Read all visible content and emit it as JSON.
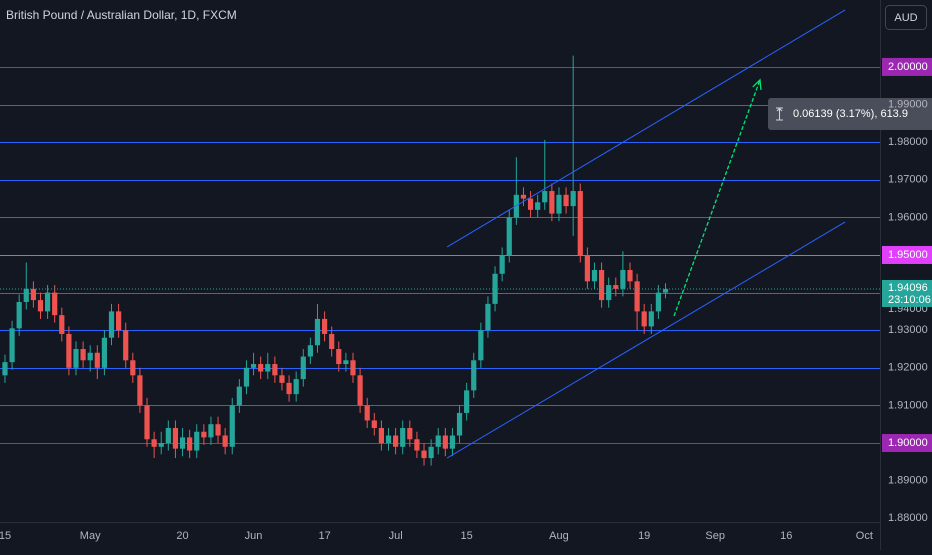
{
  "chart_data": {
    "type": "candlestick",
    "title": "British Pound / Australian Dollar, 1D, FXCM",
    "currency": "AUD",
    "up_color": "#26a69a",
    "down_color": "#ef5350",
    "xlim": [
      -0.7,
      123.2
    ],
    "ylim": [
      1.879,
      2.0178
    ],
    "xticks": [
      {
        "value": 0,
        "label": "15"
      },
      {
        "value": 12,
        "label": "May"
      },
      {
        "value": 25,
        "label": "20"
      },
      {
        "value": 35,
        "label": "Jun"
      },
      {
        "value": 45,
        "label": "17"
      },
      {
        "value": 55,
        "label": "Jul"
      },
      {
        "value": 65,
        "label": "15"
      },
      {
        "value": 78,
        "label": "Aug"
      },
      {
        "value": 90,
        "label": "19"
      },
      {
        "value": 100,
        "label": "Sep"
      },
      {
        "value": 110,
        "label": "16"
      },
      {
        "value": 121,
        "label": "Oct"
      }
    ],
    "yticks": [
      {
        "value": 2.0,
        "label": "2.00000"
      },
      {
        "value": 1.99,
        "label": "1.99000"
      },
      {
        "value": 1.98,
        "label": "1.98000"
      },
      {
        "value": 1.97,
        "label": "1.97000"
      },
      {
        "value": 1.96,
        "label": "1.96000"
      },
      {
        "value": 1.95,
        "label": "1.95000"
      },
      {
        "value": 1.94,
        "label": "1.94000"
      },
      {
        "value": 1.93,
        "label": "1.93000"
      },
      {
        "value": 1.92,
        "label": "1.92000"
      },
      {
        "value": 1.91,
        "label": "1.91000"
      },
      {
        "value": 1.9,
        "label": "1.90000"
      },
      {
        "value": 1.89,
        "label": "1.89000"
      },
      {
        "value": 1.88,
        "label": "1.88000"
      }
    ],
    "levels": [
      {
        "value": 2.0,
        "color": "#9c27b0",
        "tag": true
      },
      {
        "value": 1.99,
        "color": "#2962ff",
        "tag": false
      },
      {
        "value": 1.98,
        "color": "#2962ff",
        "tag": false
      },
      {
        "value": 1.97,
        "color": "#2962ff",
        "tag": false
      },
      {
        "value": 1.96,
        "color": "#2962ff",
        "tag": false
      },
      {
        "value": 1.95,
        "color": "#e040fb",
        "tag": true
      },
      {
        "value": 1.94,
        "color": "#2962ff",
        "tag": false
      },
      {
        "value": 1.93,
        "color": "#2962ff",
        "tag": false
      },
      {
        "value": 1.92,
        "color": "#2962ff",
        "tag": false
      },
      {
        "value": 1.91,
        "color": "#2962ff",
        "tag": false
      },
      {
        "value": 1.9,
        "color": "#9c27b0",
        "tag": true
      }
    ],
    "trend_lines": [
      {
        "x": [
          62.25,
          118.3
        ],
        "y": [
          1.95213,
          2.01516
        ],
        "color": "#2962ff"
      },
      {
        "x": [
          62.25,
          118.3
        ],
        "y": [
          1.89601,
          1.95878
        ],
        "color": "#2962ff"
      }
    ],
    "projection_arrow": {
      "x": [
        94.2,
        106.3
      ],
      "y": [
        1.93378,
        1.99654
      ],
      "color": "#00e676"
    },
    "measure_label": "0.06139 (3.17%), 613.9",
    "countdown": "23:10:06",
    "ohlc": [
      [
        1.918,
        1.9235,
        1.916,
        1.9215
      ],
      [
        1.9215,
        1.9325,
        1.9195,
        1.9305
      ],
      [
        1.9305,
        1.9395,
        1.9285,
        1.9375
      ],
      [
        1.9375,
        1.948,
        1.9355,
        1.941
      ],
      [
        1.941,
        1.943,
        1.936,
        1.938
      ],
      [
        1.938,
        1.94,
        1.933,
        1.935
      ],
      [
        1.935,
        1.942,
        1.933,
        1.94
      ],
      [
        1.94,
        1.942,
        1.932,
        1.934
      ],
      [
        1.934,
        1.936,
        1.927,
        1.929
      ],
      [
        1.929,
        1.931,
        1.918,
        1.92
      ],
      [
        1.92,
        1.927,
        1.918,
        1.925
      ],
      [
        1.925,
        1.927,
        1.92,
        1.922
      ],
      [
        1.922,
        1.926,
        1.919,
        1.924
      ],
      [
        1.924,
        1.926,
        1.917,
        1.92
      ],
      [
        1.92,
        1.93,
        1.918,
        1.928
      ],
      [
        1.928,
        1.937,
        1.926,
        1.935
      ],
      [
        1.935,
        1.937,
        1.928,
        1.93
      ],
      [
        1.93,
        1.932,
        1.92,
        1.922
      ],
      [
        1.922,
        1.924,
        1.916,
        1.918
      ],
      [
        1.918,
        1.92,
        1.908,
        1.91
      ],
      [
        1.91,
        1.912,
        1.899,
        1.901
      ],
      [
        1.901,
        1.903,
        1.896,
        1.899
      ],
      [
        1.899,
        1.903,
        1.897,
        1.9
      ],
      [
        1.9,
        1.906,
        1.898,
        1.904
      ],
      [
        1.904,
        1.906,
        1.896,
        1.8985
      ],
      [
        1.8985,
        1.904,
        1.8965,
        1.9015
      ],
      [
        1.9015,
        1.9035,
        1.896,
        1.898
      ],
      [
        1.898,
        1.905,
        1.896,
        1.903
      ],
      [
        1.903,
        1.905,
        1.8995,
        1.9015
      ],
      [
        1.9015,
        1.907,
        1.8995,
        1.905
      ],
      [
        1.905,
        1.907,
        1.9,
        1.902
      ],
      [
        1.902,
        1.904,
        1.897,
        1.899
      ],
      [
        1.899,
        1.912,
        1.897,
        1.91
      ],
      [
        1.91,
        1.917,
        1.908,
        1.915
      ],
      [
        1.915,
        1.922,
        1.913,
        1.92
      ],
      [
        1.92,
        1.924,
        1.918,
        1.921
      ],
      [
        1.921,
        1.923,
        1.917,
        1.919
      ],
      [
        1.919,
        1.924,
        1.917,
        1.921
      ],
      [
        1.921,
        1.923,
        1.916,
        1.918
      ],
      [
        1.918,
        1.92,
        1.914,
        1.916
      ],
      [
        1.916,
        1.918,
        1.911,
        1.913
      ],
      [
        1.913,
        1.919,
        1.911,
        1.917
      ],
      [
        1.917,
        1.925,
        1.915,
        1.923
      ],
      [
        1.923,
        1.928,
        1.921,
        1.926
      ],
      [
        1.926,
        1.937,
        1.924,
        1.933
      ],
      [
        1.933,
        1.935,
        1.927,
        1.929
      ],
      [
        1.929,
        1.931,
        1.923,
        1.925
      ],
      [
        1.925,
        1.927,
        1.919,
        1.921
      ],
      [
        1.921,
        1.924,
        1.919,
        1.922
      ],
      [
        1.922,
        1.924,
        1.916,
        1.918
      ],
      [
        1.918,
        1.92,
        1.908,
        1.91
      ],
      [
        1.91,
        1.912,
        1.904,
        1.906
      ],
      [
        1.906,
        1.908,
        1.902,
        1.904
      ],
      [
        1.904,
        1.906,
        1.898,
        1.9
      ],
      [
        1.9,
        1.904,
        1.898,
        1.902
      ],
      [
        1.902,
        1.904,
        1.897,
        1.899
      ],
      [
        1.899,
        1.906,
        1.897,
        1.904
      ],
      [
        1.904,
        1.906,
        1.899,
        1.901
      ],
      [
        1.901,
        1.903,
        1.896,
        1.898
      ],
      [
        1.898,
        1.9,
        1.894,
        1.896
      ],
      [
        1.896,
        1.901,
        1.894,
        1.899
      ],
      [
        1.899,
        1.904,
        1.897,
        1.902
      ],
      [
        1.902,
        1.904,
        1.8965,
        1.8985
      ],
      [
        1.8985,
        1.904,
        1.8965,
        1.902
      ],
      [
        1.902,
        1.91,
        1.9,
        1.908
      ],
      [
        1.908,
        1.916,
        1.906,
        1.914
      ],
      [
        1.914,
        1.924,
        1.912,
        1.922
      ],
      [
        1.922,
        1.932,
        1.92,
        1.93
      ],
      [
        1.93,
        1.939,
        1.928,
        1.937
      ],
      [
        1.937,
        1.947,
        1.935,
        1.945
      ],
      [
        1.945,
        1.952,
        1.943,
        1.95
      ],
      [
        1.95,
        1.962,
        1.948,
        1.96
      ],
      [
        1.96,
        1.976,
        1.958,
        1.966
      ],
      [
        1.966,
        1.968,
        1.963,
        1.965
      ],
      [
        1.965,
        1.967,
        1.96,
        1.962
      ],
      [
        1.962,
        1.966,
        1.96,
        1.964
      ],
      [
        1.964,
        1.9806,
        1.962,
        1.967
      ],
      [
        1.967,
        1.969,
        1.959,
        1.961
      ],
      [
        1.961,
        1.968,
        1.959,
        1.966
      ],
      [
        1.966,
        1.968,
        1.961,
        1.963
      ],
      [
        1.963,
        2.003,
        1.955,
        1.967
      ],
      [
        1.967,
        1.969,
        1.948,
        1.95
      ],
      [
        1.95,
        1.952,
        1.941,
        1.943
      ],
      [
        1.943,
        1.948,
        1.941,
        1.946
      ],
      [
        1.946,
        1.948,
        1.936,
        1.938
      ],
      [
        1.938,
        1.944,
        1.936,
        1.942
      ],
      [
        1.942,
        1.944,
        1.939,
        1.941
      ],
      [
        1.941,
        1.951,
        1.939,
        1.946
      ],
      [
        1.946,
        1.948,
        1.941,
        1.943
      ],
      [
        1.943,
        1.945,
        1.93,
        1.935
      ],
      [
        1.935,
        1.937,
        1.929,
        1.931
      ],
      [
        1.931,
        1.937,
        1.929,
        1.935
      ],
      [
        1.935,
        1.942,
        1.933,
        1.94
      ],
      [
        1.94,
        1.9425,
        1.9385,
        1.94096
      ]
    ]
  }
}
